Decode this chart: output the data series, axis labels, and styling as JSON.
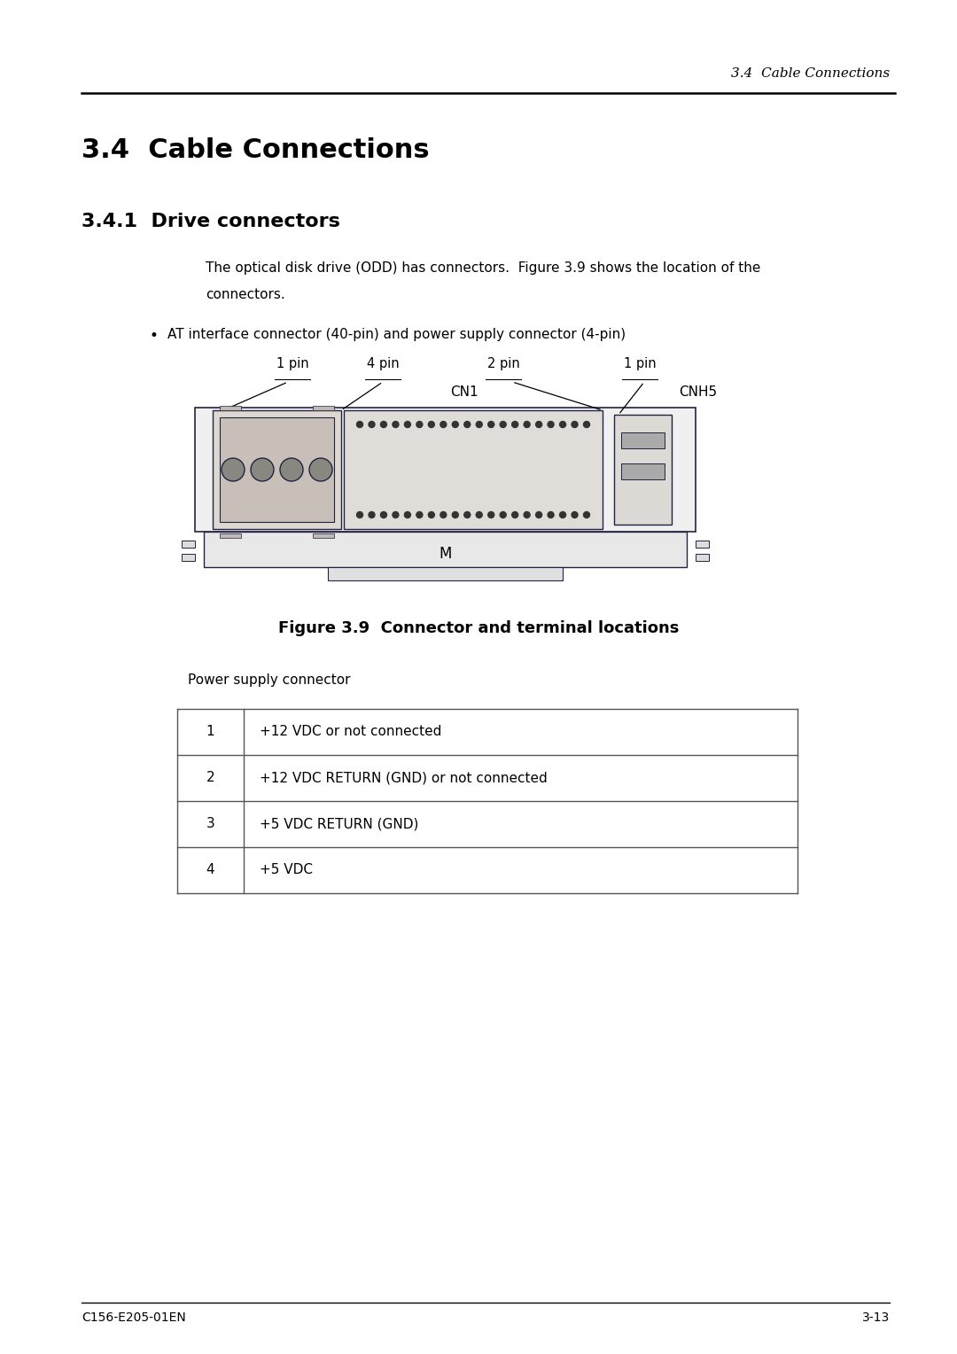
{
  "page_header": "3.4  Cable Connections",
  "section_title": "3.4  Cable Connections",
  "subsection_title": "3.4.1  Drive connectors",
  "body_text_line1": "The optical disk drive (ODD) has connectors.  Figure 3.9 shows the location of the",
  "body_text_line2": "connectors.",
  "bullet_text": "AT interface connector (40-pin) and power supply connector (4-pin)",
  "figure_caption": "Figure 3.9  Connector and terminal locations",
  "table_label": "Power supply connector",
  "table_rows": [
    [
      "1",
      "+12 VDC or not connected"
    ],
    [
      "2",
      "+12 VDC RETURN (GND) or not connected"
    ],
    [
      "3",
      "+5 VDC RETURN (GND)"
    ],
    [
      "4",
      "+5 VDC"
    ]
  ],
  "footer_left": "C156-E205-01EN",
  "footer_right": "3-13",
  "bg_color": "#ffffff",
  "text_color": "#000000",
  "diagram_line_color": "#222244",
  "table_border_color": "#555555"
}
